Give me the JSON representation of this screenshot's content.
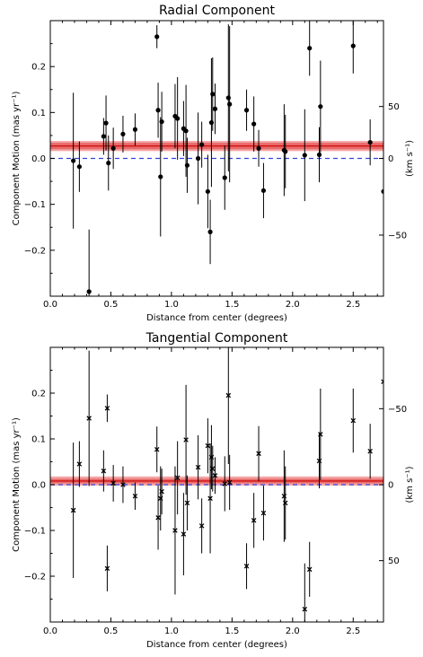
{
  "chart_data": [
    {
      "type": "scatter",
      "title": "Radial Component",
      "xlabel": "Distance from center (degrees)",
      "ylabel": "Component Motion (mas yr⁻¹)",
      "ylabel_right": "(km s⁻¹)",
      "xlim": [
        0.0,
        2.75
      ],
      "ylim": [
        -0.3,
        0.3
      ],
      "xticks": [
        "0.0",
        "0.5",
        "1.0",
        "1.5",
        "2.0",
        "2.5"
      ],
      "yticks": [
        "0.2",
        "0.1",
        "0.0",
        "−0.1",
        "−0.2"
      ],
      "right_ticks": [
        "50",
        "0",
        "−50"
      ],
      "marker": "circle",
      "mean_band": {
        "center": 0.027,
        "inner": [
          0.02,
          0.034
        ],
        "outer": [
          0.016,
          0.038
        ]
      },
      "zero_line": 0.0,
      "points": [
        {
          "x": 0.19,
          "y": -0.005,
          "err": 0.148
        },
        {
          "x": 0.24,
          "y": -0.018,
          "err": 0.055
        },
        {
          "x": 0.32,
          "y": -0.29,
          "err": 0.135
        },
        {
          "x": 0.44,
          "y": 0.048,
          "err": 0.04
        },
        {
          "x": 0.46,
          "y": 0.077,
          "err": 0.06
        },
        {
          "x": 0.48,
          "y": -0.01,
          "err": 0.06
        },
        {
          "x": 0.52,
          "y": 0.022,
          "err": 0.045
        },
        {
          "x": 0.6,
          "y": 0.053,
          "err": 0.04
        },
        {
          "x": 0.7,
          "y": 0.063,
          "err": 0.035
        },
        {
          "x": 0.88,
          "y": 0.265,
          "err": 0.025
        },
        {
          "x": 0.89,
          "y": 0.105,
          "err": 0.06
        },
        {
          "x": 0.91,
          "y": -0.04,
          "err": 0.13
        },
        {
          "x": 0.92,
          "y": 0.08,
          "err": 0.065
        },
        {
          "x": 1.03,
          "y": 0.092,
          "err": 0.07
        },
        {
          "x": 1.05,
          "y": 0.087,
          "err": 0.09
        },
        {
          "x": 1.1,
          "y": 0.065,
          "err": 0.06
        },
        {
          "x": 1.12,
          "y": 0.06,
          "err": 0.1
        },
        {
          "x": 1.13,
          "y": -0.015,
          "err": 0.06
        },
        {
          "x": 1.22,
          "y": 0.0,
          "err": 0.1
        },
        {
          "x": 1.25,
          "y": 0.03,
          "err": 0.05
        },
        {
          "x": 1.3,
          "y": -0.072,
          "err": 0.08
        },
        {
          "x": 1.32,
          "y": -0.16,
          "err": 0.07
        },
        {
          "x": 1.33,
          "y": 0.078,
          "err": 0.14
        },
        {
          "x": 1.34,
          "y": 0.14,
          "err": 0.08
        },
        {
          "x": 1.36,
          "y": 0.108,
          "err": 0.055
        },
        {
          "x": 1.44,
          "y": -0.042,
          "err": 0.07
        },
        {
          "x": 1.47,
          "y": 0.132,
          "err": 0.16
        },
        {
          "x": 1.48,
          "y": 0.118,
          "err": 0.17
        },
        {
          "x": 1.62,
          "y": 0.105,
          "err": 0.045
        },
        {
          "x": 1.68,
          "y": 0.075,
          "err": 0.06
        },
        {
          "x": 1.72,
          "y": 0.022,
          "err": 0.04
        },
        {
          "x": 1.76,
          "y": -0.07,
          "err": 0.06
        },
        {
          "x": 1.93,
          "y": 0.018,
          "err": 0.1
        },
        {
          "x": 1.94,
          "y": 0.015,
          "err": 0.08
        },
        {
          "x": 2.1,
          "y": 0.007,
          "err": 0.1
        },
        {
          "x": 2.14,
          "y": 0.24,
          "err": 0.06
        },
        {
          "x": 2.22,
          "y": 0.008,
          "err": 0.06
        },
        {
          "x": 2.23,
          "y": 0.113,
          "err": 0.1
        },
        {
          "x": 2.5,
          "y": 0.245,
          "err": 0.06
        },
        {
          "x": 2.64,
          "y": 0.035,
          "err": 0.05
        },
        {
          "x": 2.75,
          "y": -0.072,
          "err": 0.05
        }
      ]
    },
    {
      "type": "scatter",
      "title": "Tangential Component",
      "xlabel": "Distance from center (degrees)",
      "ylabel": "Component Motion (mas yr⁻¹)",
      "ylabel_right": "(km s⁻¹)",
      "xlim": [
        0.0,
        2.75
      ],
      "ylim": [
        -0.3,
        0.3
      ],
      "xticks": [
        "0.0",
        "0.5",
        "1.0",
        "1.5",
        "2.0",
        "2.5"
      ],
      "yticks": [
        "0.2",
        "0.1",
        "0.0",
        "−0.1",
        "−0.2"
      ],
      "right_ticks": [
        "−50",
        "0",
        "50"
      ],
      "marker": "cross",
      "mean_band": {
        "center": 0.008,
        "inner": [
          0.003,
          0.013
        ],
        "outer": [
          -0.002,
          0.018
        ]
      },
      "zero_line": 0.0,
      "points": [
        {
          "x": 0.19,
          "y": -0.056,
          "err": 0.148
        },
        {
          "x": 0.24,
          "y": 0.045,
          "err": 0.05
        },
        {
          "x": 0.32,
          "y": 0.145,
          "err": 0.148
        },
        {
          "x": 0.44,
          "y": 0.03,
          "err": 0.045
        },
        {
          "x": 0.47,
          "y": 0.167,
          "err": 0.03
        },
        {
          "x": 0.47,
          "y": -0.183,
          "err": 0.05
        },
        {
          "x": 0.52,
          "y": 0.003,
          "err": 0.04
        },
        {
          "x": 0.6,
          "y": 0.0,
          "err": 0.04
        },
        {
          "x": 0.7,
          "y": -0.025,
          "err": 0.03
        },
        {
          "x": 0.88,
          "y": 0.077,
          "err": 0.05
        },
        {
          "x": 0.89,
          "y": -0.072,
          "err": 0.07
        },
        {
          "x": 0.91,
          "y": -0.03,
          "err": 0.07
        },
        {
          "x": 0.92,
          "y": -0.015,
          "err": 0.05
        },
        {
          "x": 1.03,
          "y": -0.1,
          "err": 0.14
        },
        {
          "x": 1.05,
          "y": 0.015,
          "err": 0.08
        },
        {
          "x": 1.1,
          "y": -0.108,
          "err": 0.09
        },
        {
          "x": 1.12,
          "y": 0.098,
          "err": 0.12
        },
        {
          "x": 1.13,
          "y": -0.04,
          "err": 0.06
        },
        {
          "x": 1.22,
          "y": 0.038,
          "err": 0.07
        },
        {
          "x": 1.25,
          "y": -0.09,
          "err": 0.06
        },
        {
          "x": 1.3,
          "y": 0.085,
          "err": 0.06
        },
        {
          "x": 1.32,
          "y": -0.03,
          "err": 0.12
        },
        {
          "x": 1.33,
          "y": 0.06,
          "err": 0.07
        },
        {
          "x": 1.34,
          "y": 0.035,
          "err": 0.05
        },
        {
          "x": 1.36,
          "y": 0.02,
          "err": 0.04
        },
        {
          "x": 1.44,
          "y": 0.002,
          "err": 0.06
        },
        {
          "x": 1.47,
          "y": 0.195,
          "err": 0.15
        },
        {
          "x": 1.48,
          "y": 0.005,
          "err": 0.06
        },
        {
          "x": 1.62,
          "y": -0.178,
          "err": 0.05
        },
        {
          "x": 1.68,
          "y": -0.078,
          "err": 0.06
        },
        {
          "x": 1.72,
          "y": 0.068,
          "err": 0.06
        },
        {
          "x": 1.76,
          "y": -0.062,
          "err": 0.06
        },
        {
          "x": 1.93,
          "y": -0.025,
          "err": 0.1
        },
        {
          "x": 1.94,
          "y": -0.04,
          "err": 0.08
        },
        {
          "x": 2.1,
          "y": -0.272,
          "err": 0.1
        },
        {
          "x": 2.14,
          "y": -0.185,
          "err": 0.06
        },
        {
          "x": 2.22,
          "y": 0.052,
          "err": 0.06
        },
        {
          "x": 2.23,
          "y": 0.11,
          "err": 0.1
        },
        {
          "x": 2.5,
          "y": 0.14,
          "err": 0.07
        },
        {
          "x": 2.64,
          "y": 0.073,
          "err": 0.06
        },
        {
          "x": 2.75,
          "y": 0.225,
          "err": 0.05
        }
      ]
    }
  ]
}
